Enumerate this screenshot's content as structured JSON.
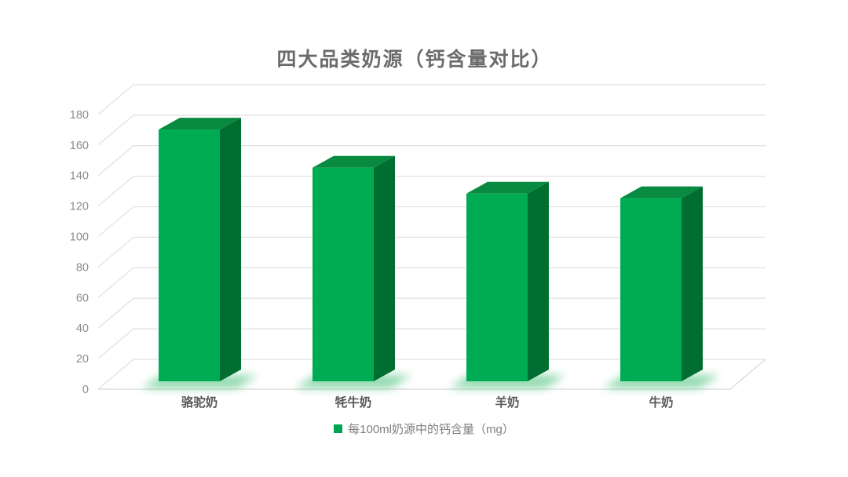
{
  "title": "四大品类奶源（钙含量对比）",
  "legend": {
    "label": "每100ml奶源中的钙含量（mg）",
    "marker_color": "#00A551"
  },
  "chart_data": {
    "type": "bar",
    "style": "3d-column",
    "title": "四大品类奶源（钙含量对比）",
    "categories": [
      "骆驼奶",
      "牦牛奶",
      "羊奶",
      "牛奶"
    ],
    "values": [
      165,
      140,
      123,
      120
    ],
    "series": [
      {
        "name": "每100ml奶源中的钙含量（mg）",
        "values": [
          165,
          140,
          123,
          120
        ]
      }
    ],
    "xlabel": "",
    "ylabel": "",
    "ylim": [
      0,
      180
    ],
    "yticks": [
      0,
      20,
      40,
      60,
      80,
      100,
      120,
      140,
      160,
      180
    ],
    "grid": true,
    "legend_position": "bottom",
    "colors": {
      "bar_front": "#00AC53",
      "bar_side": "#006E31",
      "bar_top": "#088B40",
      "glow": "#63CA8E",
      "gridline": "#E2E2E2",
      "floor_edge": "#D8D8D8",
      "axis_text": "#8C8C8C",
      "category_text": "#595959",
      "title_text": "#6B6B6B",
      "legend_text": "#7F7F7F",
      "background": "#FFFFFF"
    }
  }
}
